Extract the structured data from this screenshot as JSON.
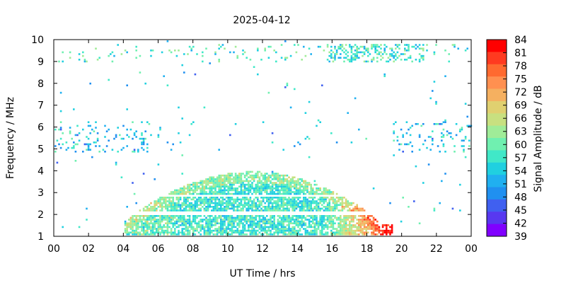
{
  "chart_data": {
    "type": "heatmap",
    "title": "2025-04-12",
    "xlabel": "UT Time / hrs",
    "ylabel": "Frequency / MHz",
    "colorbar_label": "Signal Amplitude / dB",
    "x_ticks": [
      "00",
      "02",
      "04",
      "06",
      "08",
      "10",
      "12",
      "14",
      "16",
      "18",
      "20",
      "22",
      "00"
    ],
    "y_ticks": [
      "1",
      "2",
      "3",
      "4",
      "5",
      "6",
      "7",
      "8",
      "9",
      "10"
    ],
    "colorbar_ticks": [
      "84",
      "81",
      "78",
      "75",
      "72",
      "69",
      "66",
      "63",
      "60",
      "57",
      "54",
      "51",
      "48",
      "45",
      "42",
      "39"
    ],
    "xlim": [
      0,
      24
    ],
    "ylim": [
      1,
      10
    ],
    "zlim": [
      39,
      84
    ],
    "colorbar_colors": [
      "#ff0000",
      "#ff3a20",
      "#ff6a30",
      "#ff9050",
      "#f5b060",
      "#e0d070",
      "#c8e080",
      "#a0ec98",
      "#70f0b0",
      "#40e8c8",
      "#20d0e0",
      "#20b0f0",
      "#2090f0",
      "#4060f0",
      "#5838f0",
      "#8000ff"
    ],
    "echo_region": {
      "description": "ionospheric echoes",
      "start_hr": 4.0,
      "end_hr": 19.5,
      "peak_top_mhz": 4.0,
      "peak_hr": 11.5,
      "afternoon_strong_dB": 84
    }
  }
}
